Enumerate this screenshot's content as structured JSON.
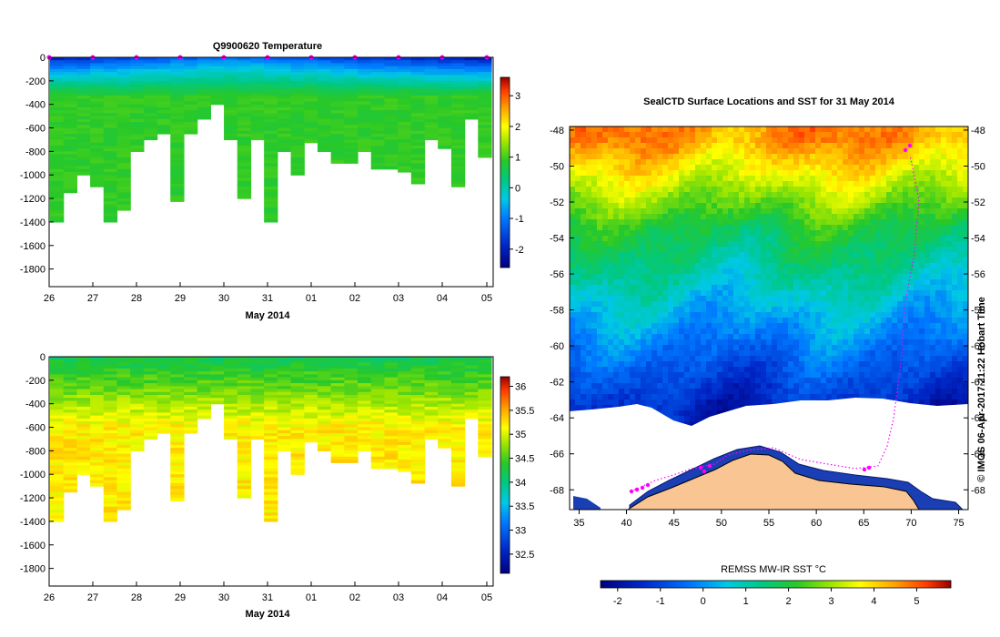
{
  "chart_data": [
    {
      "type": "heatmap",
      "title": "Q9900620  Temperature",
      "xlabel": "May 2014",
      "x_ticks": [
        "26",
        "27",
        "28",
        "29",
        "30",
        "31",
        "01",
        "02",
        "03",
        "04",
        "05"
      ],
      "y_ticks": [
        "0",
        "-200",
        "-400",
        "-600",
        "-800",
        "-1000",
        "-1200",
        "-1400",
        "-1600",
        "-1800"
      ],
      "ylim": [
        -1950,
        0
      ],
      "colorbar": {
        "ticks": [
          "-2",
          "-1",
          "0",
          "1",
          "2",
          "3"
        ],
        "range": [
          -2.6,
          3.6
        ]
      },
      "profile_max_depth_m": [
        1400,
        1130,
        1000,
        1090,
        1390,
        1300,
        790,
        680,
        650,
        1210,
        650,
        520,
        400,
        700,
        1200,
        700,
        1400,
        790,
        1000,
        710,
        790,
        880,
        880,
        800,
        930,
        950,
        960,
        1070,
        700,
        770,
        1080,
        510,
        850
      ],
      "profile_surface_temp_c": [
        -1.8,
        -1.7,
        -1.7,
        -1.6,
        -1.5,
        -1.5,
        -1.4,
        -1.3,
        -1.3,
        -1.2,
        -1.2,
        -1.1,
        -1.1,
        -1.0,
        -1.0,
        -1.0,
        -1.1,
        -1.2,
        -1.3,
        -1.3,
        -1.4,
        -1.5,
        -1.5,
        -1.6,
        -1.6,
        -1.7,
        -1.7,
        -1.8,
        -1.8,
        -1.9,
        -1.9,
        -2.0,
        -2.0
      ],
      "deep_temp_c": 0.9,
      "surface_markers": 11
    },
    {
      "type": "heatmap",
      "title": "",
      "xlabel": "May 2014",
      "x_ticks": [
        "26",
        "27",
        "28",
        "29",
        "30",
        "31",
        "01",
        "02",
        "03",
        "04",
        "05"
      ],
      "y_ticks": [
        "0",
        "-200",
        "-400",
        "-600",
        "-800",
        "-1000",
        "-1200",
        "-1400",
        "-1600",
        "-1800"
      ],
      "ylim": [
        -1950,
        0
      ],
      "colorbar": {
        "ticks": [
          "32.5",
          "33",
          "33.5",
          "34",
          "34.5",
          "35",
          "35.5",
          "36"
        ],
        "range": [
          32.1,
          36.2
        ]
      },
      "profile_max_depth_m": [
        1400,
        1130,
        1000,
        1090,
        1390,
        1300,
        790,
        680,
        650,
        1210,
        650,
        520,
        400,
        700,
        1200,
        700,
        1400,
        790,
        1000,
        710,
        790,
        880,
        880,
        800,
        930,
        950,
        960,
        1070,
        700,
        770,
        1080,
        510,
        850
      ],
      "surface_value": 34.2,
      "deep_value": 35.2
    },
    {
      "type": "heatmap",
      "title": "SealCTD Surface Locations and SST for 31 May 2014",
      "xlabel": "",
      "x_ticks": [
        "35",
        "40",
        "45",
        "50",
        "55",
        "60",
        "65",
        "70",
        "75"
      ],
      "y_ticks": [
        "-48",
        "-50",
        "-52",
        "-54",
        "-56",
        "-58",
        "-60",
        "-62",
        "-64",
        "-66",
        "-68"
      ],
      "xlim": [
        34,
        76
      ],
      "ylim": [
        -69.1,
        -47.8
      ],
      "colorbar": {
        "label": "REMSS MW-IR SST °C",
        "ticks": [
          "-2",
          "-1",
          "0",
          "1",
          "2",
          "3",
          "4",
          "5"
        ],
        "range": [
          -2.4,
          5.8
        ]
      },
      "sst_bands": [
        {
          "lat": -48.5,
          "sst": 4.6
        },
        {
          "lat": -51.0,
          "sst": 3.3
        },
        {
          "lat": -53.5,
          "sst": 1.9
        },
        {
          "lat": -56.0,
          "sst": 1.1
        },
        {
          "lat": -58.5,
          "sst": 0.2
        },
        {
          "lat": -61.0,
          "sst": -0.7
        },
        {
          "lat": -63.5,
          "sst": -1.5
        }
      ],
      "credit": "© IMOS 06-Apr-2017 21:22 Hobart Time"
    }
  ],
  "colors": {
    "land": "#f9c592",
    "track": "#ff00ff",
    "ice": "#ffffff"
  }
}
